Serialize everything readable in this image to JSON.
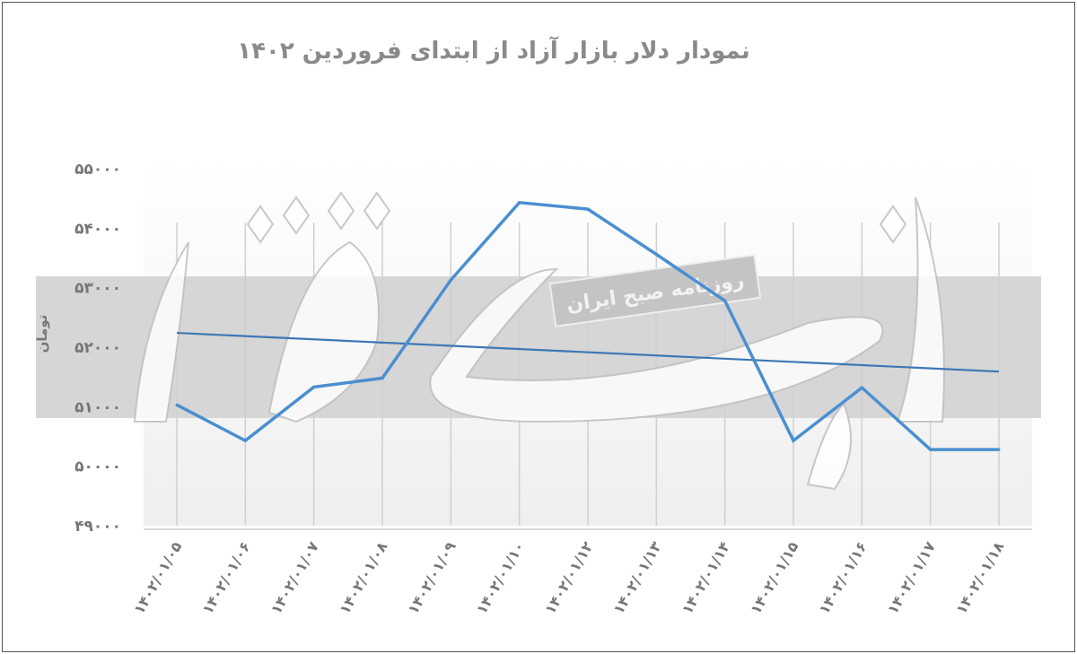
{
  "chart_data": {
    "type": "line",
    "title": "نمودار دلار بازار آزاد از ابتدای فروردین ۱۴۰۲",
    "xlabel": "",
    "ylabel": "تومان",
    "categories": [
      "۱۴۰۲/۰۱/۰۵",
      "۱۴۰۲/۰۱/۰۶",
      "۱۴۰۲/۰۱/۰۷",
      "۱۴۰۲/۰۱/۰۸",
      "۱۴۰۲/۰۱/۰۹",
      "۱۴۰۲/۰۱/۱۰",
      "۱۴۰۲/۰۱/۱۲",
      "۱۴۰۲/۰۱/۱۳",
      "۱۴۰۲/۰۱/۱۴",
      "۱۴۰۲/۰۱/۱۵",
      "۱۴۰۲/۰۱/۱۶",
      "۱۴۰۲/۰۱/۱۷",
      "۱۴۰۲/۰۱/۱۸"
    ],
    "series": [
      {
        "values": [
          51030,
          50430,
          51330,
          51480,
          53130,
          54430,
          54320,
          53560,
          52780,
          50430,
          51320,
          50280,
          50280
        ],
        "color": "#4a8fd0"
      }
    ],
    "trendline": {
      "type": "linear",
      "start": 52240,
      "end": 51590,
      "color": "#3c78b4"
    },
    "ylim": [
      49000,
      55000
    ],
    "yticks": [
      55000,
      54000,
      53000,
      52000,
      51000,
      50000,
      49000
    ],
    "ytick_labels": [
      "۵۵۰۰۰",
      "۵۴۰۰۰",
      "۵۳۰۰۰",
      "۵۲۰۰۰",
      "۵۱۰۰۰",
      "۵۰۰۰۰",
      "۴۹۰۰۰"
    ],
    "grid": "vertical",
    "legend": "none"
  },
  "watermark": {
    "logo": "دنیای اقتصاد",
    "tagline": "روزنامه صبح ایران"
  }
}
